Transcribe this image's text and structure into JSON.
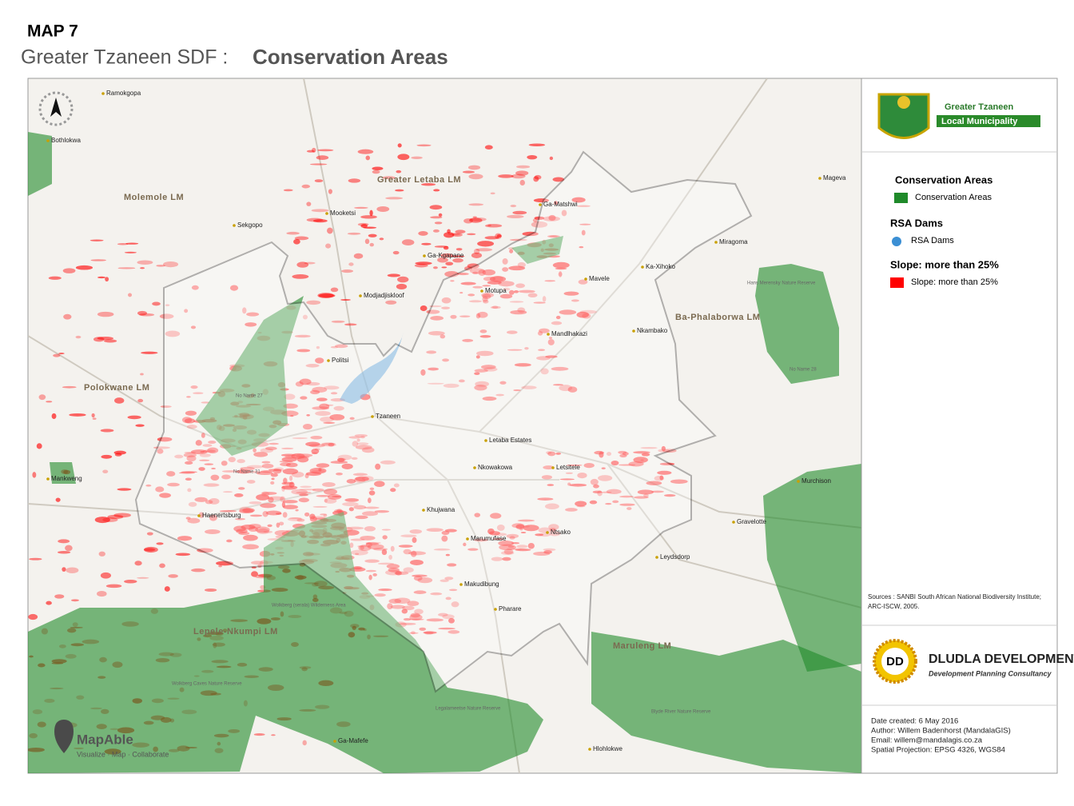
{
  "header": {
    "map_number": "MAP 7",
    "prefix": "Greater Tzaneen SDF :",
    "title": "Conservation Areas"
  },
  "map": {
    "places": [
      "Ramokgopa",
      "Bothlokwa",
      "Molemole LM",
      "Greater Letaba LM",
      "Mooketsi",
      "Sekgopo",
      "Ga-Kgapane",
      "Modjadjiskloof",
      "Motupa",
      "Ga-Matshwi",
      "Mageva",
      "Miragoma",
      "Ka-Xihoko",
      "Mavele",
      "Mandlhakazi",
      "Nkambako",
      "Ba-Phalaborwa LM",
      "Politsi",
      "Polokwane LM",
      "Tzaneen",
      "Letaba Estates",
      "Nkowakowa",
      "Letsitele",
      "Murchison",
      "Mankweng",
      "Khujwana",
      "Haenertsburg",
      "Gravelotte",
      "Marumufase",
      "Ntsako",
      "Leydsdorp",
      "Makudibung",
      "Pharare",
      "Lepele-Nkumpi LM",
      "Maruleng LM",
      "Ga-Mafefe",
      "Hlohlokwe"
    ],
    "small_labels": [
      "No Name 27",
      "No Name 31",
      "Wolkberg (serala) Wilderness Area",
      "Hans Merensky Nature Reserve",
      "Legalameetse Nature Reserve",
      "No Name 28",
      "Wolkberg Caves Nature Reserve",
      "Blyde River Nature Reserve"
    ]
  },
  "logo": {
    "line1": "Greater Tzaneen",
    "line2": "Local Municipality"
  },
  "legend": {
    "sections": [
      {
        "heading": "Conservation Areas",
        "item": "Conservation Areas",
        "color": "#1f8a2a"
      },
      {
        "heading": "RSA Dams",
        "item": "RSA Dams",
        "color": "#3b8fd4"
      },
      {
        "heading": "Slope:  more than 25%",
        "item": "Slope:  more than 25%",
        "color": "#ff0000"
      }
    ]
  },
  "sources": "Sources : SANBI South African National Biodiversity Institute;  ARC-ISCW,  2005.",
  "consultant": {
    "name": "DLUDLA DEVELOPMENT",
    "tagline": "Development  Planning Consultancy",
    "initials": "DD"
  },
  "metadata": [
    "Date created:   6 May 2016",
    "Author: Willem Badenhorst (MandalaGIS)",
    "Email: willem@mandalagis.co.za",
    "Spatial Projection: EPSG 4326, WGS84"
  ],
  "brand": {
    "name": "MapAble",
    "tagline": "Visualize · Map · Collaborate"
  }
}
